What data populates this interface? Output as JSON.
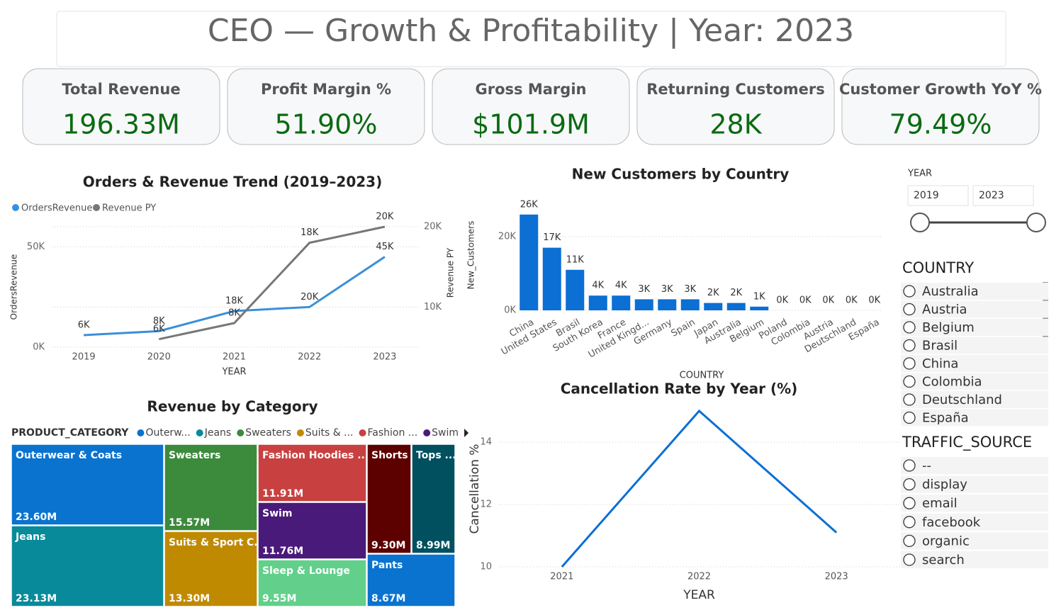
{
  "title": "CEO — Growth & Profitability | Year: 2023",
  "kpis": [
    {
      "label": "Total Revenue",
      "value": "196.33M"
    },
    {
      "label": "Profit Margin %",
      "value": "51.90%"
    },
    {
      "label": "Gross Margin",
      "value": "$101.9M"
    },
    {
      "label": "Returning Customers",
      "value": "28K"
    },
    {
      "label": "Customer Growth YoY %",
      "value": "79.49%"
    }
  ],
  "year_slicer": {
    "label": "YEAR",
    "from": "2019",
    "to": "2023"
  },
  "country_slicer": {
    "title": "COUNTRY",
    "items": [
      "Australia",
      "Austria",
      "Belgium",
      "Brasil",
      "China",
      "Colombia",
      "Deutschland",
      "España"
    ]
  },
  "traffic_slicer": {
    "title": "TRAFFIC_SOURCE",
    "items": [
      "--",
      "display",
      "email",
      "facebook",
      "organic",
      "search"
    ]
  },
  "chart_data": [
    {
      "type": "line",
      "title": "Orders & Revenue Trend (2019–2023)",
      "categories": [
        "2019",
        "2020",
        "2021",
        "2022",
        "2023"
      ],
      "series": [
        {
          "name": "OrdersRevenue",
          "color": "#3a8fd9",
          "values": [
            6000,
            8000,
            18000,
            20000,
            45000
          ],
          "value_labels": [
            "6K",
            "8K",
            "18K",
            "20K",
            "45K"
          ]
        },
        {
          "name": "Revenue PY",
          "color": "#777777",
          "axis": "y2",
          "values": [
            null,
            6000,
            8000,
            18000,
            20000
          ],
          "value_labels": [
            null,
            "6K",
            "8K",
            "18K",
            "20K"
          ]
        }
      ],
      "xlabel": "YEAR",
      "ylabel": "OrdersRevenue",
      "y2label": "Revenue PY",
      "ylim": [
        0,
        60000
      ],
      "yticks": [
        {
          "value": 0,
          "label": "0K"
        },
        {
          "value": 50000,
          "label": "50K"
        }
      ],
      "y2lim": [
        5000,
        20000
      ],
      "y2ticks": [
        {
          "value": 10000,
          "label": "10K"
        },
        {
          "value": 20000,
          "label": "20K"
        }
      ],
      "grid": true,
      "legend": "top-left"
    },
    {
      "type": "bar",
      "title": "New Customers by Country",
      "categories": [
        "China",
        "United States",
        "Brasil",
        "South Korea",
        "France",
        "United Kingd...",
        "Germany",
        "Spain",
        "Japan",
        "Australia",
        "Belgium",
        "Poland",
        "Colombia",
        "Austria",
        "Deutschland",
        "España"
      ],
      "values": [
        26000,
        17000,
        11000,
        4000,
        4000,
        3000,
        3000,
        3000,
        2000,
        2000,
        1000,
        0,
        0,
        0,
        0,
        0
      ],
      "value_labels": [
        "26K",
        "17K",
        "11K",
        "4K",
        "4K",
        "3K",
        "3K",
        "3K",
        "2K",
        "2K",
        "1K",
        "0K",
        "0K",
        "0K",
        "0K",
        "0K"
      ],
      "color": "#0b6fd4",
      "xlabel": "COUNTRY",
      "ylabel": "New_Customers",
      "ylim": [
        0,
        30000
      ],
      "yticks": [
        {
          "value": 0,
          "label": "0K"
        },
        {
          "value": 20000,
          "label": "20K"
        }
      ],
      "grid": true
    },
    {
      "type": "line",
      "title": "Cancellation Rate by Year (%)",
      "categories": [
        "2021",
        "2022",
        "2023"
      ],
      "values": [
        10,
        15,
        11.1
      ],
      "color": "#0b6fd4",
      "xlabel": "YEAR",
      "ylabel": "Cancellation %",
      "ylim": [
        10,
        15
      ],
      "yticks": [
        10,
        12,
        14
      ],
      "grid": true
    },
    {
      "type": "treemap",
      "title": "Revenue by Category",
      "legend_title": "PRODUCT_CATEGORY",
      "legend_labels": [
        "Outerw...",
        "Jeans",
        "Sweaters",
        "Suits & ...",
        "Fashion ...",
        "Swim"
      ],
      "categories": [
        "Outerwear & Coats",
        "Jeans",
        "Sweaters",
        "Suits & Sport C...",
        "Fashion Hoodies ...",
        "Swim",
        "Sleep & Lounge",
        "Shorts",
        "Tops ...",
        "Pants"
      ],
      "values": [
        23.6,
        23.13,
        15.57,
        13.3,
        11.91,
        11.76,
        9.55,
        9.3,
        8.99,
        8.67
      ],
      "value_labels": [
        "23.60M",
        "23.13M",
        "15.57M",
        "13.30M",
        "11.91M",
        "11.76M",
        "9.55M",
        "9.30M",
        "8.99M",
        "8.67M"
      ],
      "colors": [
        "#0a73d0",
        "#088a9a",
        "#3c8a3c",
        "#c08a00",
        "#c84040",
        "#4a1a7a",
        "#62d08a",
        "#5c0000",
        "#005060",
        "#0a73d0"
      ]
    }
  ]
}
